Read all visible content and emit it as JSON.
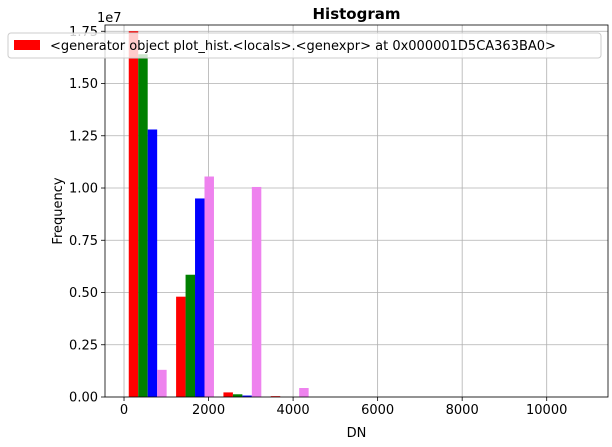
{
  "chart_data": {
    "type": "bar",
    "title": "Histogram",
    "xlabel": "DN",
    "ylabel": "Frequency",
    "offset_text": "1e7",
    "xlim": [
      -450,
      11450
    ],
    "ylim": [
      0,
      17800000
    ],
    "xticks": [
      0,
      2000,
      4000,
      6000,
      8000,
      10000
    ],
    "xtick_labels": [
      "0",
      "2000",
      "4000",
      "6000",
      "8000",
      "10000"
    ],
    "yticks": [
      0,
      2500000,
      5000000,
      7500000,
      10000000,
      12500000,
      15000000,
      17500000
    ],
    "ytick_labels": [
      "0.00",
      "0.25",
      "0.50",
      "0.75",
      "1.00",
      "1.25",
      "1.50",
      "1.75"
    ],
    "grid": true,
    "legend": {
      "position": "top",
      "label": "<generator object plot_hist.<locals>.<genexpr> at 0x000001D5CA363BA0>",
      "color": "#ff0000"
    },
    "bin_edges": [
      0,
      1120,
      2240,
      3360,
      4480,
      5600,
      6720,
      7840,
      8960,
      10080,
      11200
    ],
    "series": [
      {
        "color": "#ff0000",
        "values": [
          17500000,
          4800000,
          220000,
          40000,
          0,
          0,
          0,
          0,
          0,
          0
        ]
      },
      {
        "color": "#008000",
        "values": [
          16400000,
          5850000,
          130000,
          0,
          0,
          0,
          0,
          0,
          0,
          0
        ]
      },
      {
        "color": "#0000ff",
        "values": [
          12800000,
          9500000,
          70000,
          0,
          0,
          0,
          0,
          0,
          0,
          0
        ]
      },
      {
        "color": "#ee82ee",
        "values": [
          1300000,
          10550000,
          10050000,
          430000,
          0,
          0,
          0,
          0,
          0,
          0
        ]
      }
    ]
  }
}
